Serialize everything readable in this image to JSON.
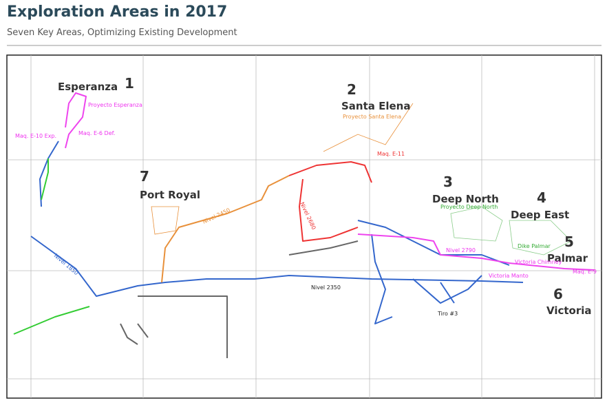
{
  "header": {
    "title": "Exploration Areas in 2017",
    "subtitle": "Seven Key Areas, Optimizing Existing Development"
  },
  "areas": [
    {
      "number": "1",
      "name": "Esperanza"
    },
    {
      "number": "2",
      "name": "Santa Elena"
    },
    {
      "number": "3",
      "name": "Deep North"
    },
    {
      "number": "4",
      "name": "Deep East"
    },
    {
      "number": "5",
      "name": "Palmar"
    },
    {
      "number": "6",
      "name": "Victoria"
    },
    {
      "number": "7",
      "name": "Port Royal"
    }
  ],
  "map_labels": [
    "Proyecto Esperanza",
    "Maq. E-10 Exp.",
    "Maq. E-6 Def.",
    "Proyecto Santa Elena",
    "Maq. E-11",
    "Proyecto Deep North",
    "Nivel 2450",
    "Nivel 2680",
    "Nivel 1850",
    "Nivel 2350",
    "Nivel 2790",
    "Dike Palmar",
    "Victoria Chimney",
    "Victoria Manto",
    "Maq. E-9",
    "Tiro #3"
  ]
}
